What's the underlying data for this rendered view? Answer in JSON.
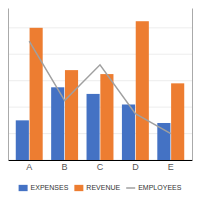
{
  "chart_data": {
    "type": "bar",
    "categories": [
      "A",
      "B",
      "C",
      "D",
      "E"
    ],
    "series": [
      {
        "name": "EXPENSES",
        "type": "bar",
        "color": "#4472C4",
        "values": [
          30,
          55,
          50,
          42,
          28
        ]
      },
      {
        "name": "REVENUE",
        "type": "bar",
        "color": "#ED7D31",
        "values": [
          100,
          68,
          65,
          105,
          58
        ]
      },
      {
        "name": "EMPLOYEES",
        "type": "line",
        "axis": "y2",
        "color": "#A0A0A0",
        "values": [
          90,
          45,
          72,
          35,
          20
        ]
      }
    ],
    "ylim": [
      0,
      115
    ],
    "yticks": [
      0,
      20,
      40,
      60,
      80,
      100
    ],
    "y2lim": [
      0,
      115
    ],
    "grid": true,
    "legend": "bottom",
    "tick_labels": "x"
  }
}
